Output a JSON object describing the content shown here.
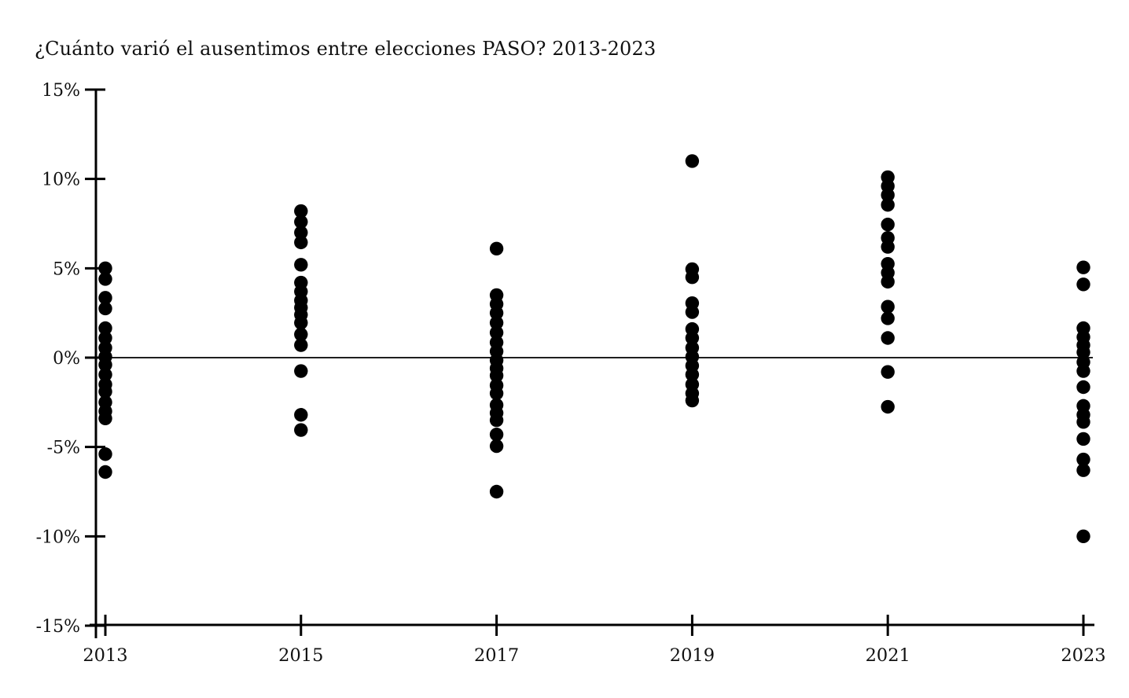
{
  "title": "¿Cuánto varió el ausentimos entre elecciones PASO? 2013-2023",
  "colors": {
    "background": "#ffffff",
    "dot": "#000000",
    "axis": "#000000",
    "zero_line": "#1f1f1f",
    "text": "#111111"
  },
  "chart_data": {
    "type": "scatter",
    "title": "¿Cuánto varió el ausentimos entre elecciones PASO? 2013-2023",
    "xlabel": "",
    "ylabel": "",
    "ylim": [
      -15,
      15
    ],
    "grid": false,
    "zero_line": true,
    "legend": "none",
    "y_ticks": [
      {
        "label": "15%",
        "value": 15
      },
      {
        "label": "10%",
        "value": 10
      },
      {
        "label": "5%",
        "value": 5
      },
      {
        "label": "0%",
        "value": 0
      },
      {
        "label": "-5%",
        "value": -5
      },
      {
        "label": "-10%",
        "value": -10
      },
      {
        "label": "-15%",
        "value": -15
      }
    ],
    "x_categories": [
      "2013",
      "2015",
      "2017",
      "2019",
      "2021",
      "2023"
    ],
    "series": [
      {
        "name": "2013",
        "values": [
          5.0,
          4.4,
          3.35,
          2.75,
          1.65,
          1.1,
          0.55,
          0.05,
          -0.4,
          -0.95,
          -1.5,
          -1.9,
          -2.5,
          -3.0,
          -3.4,
          -5.4,
          -6.4
        ]
      },
      {
        "name": "2015",
        "values": [
          8.2,
          7.6,
          7.0,
          6.45,
          5.2,
          4.2,
          3.7,
          3.2,
          2.8,
          2.4,
          1.95,
          1.3,
          0.7,
          -0.75,
          -3.2,
          -4.05
        ]
      },
      {
        "name": "2017",
        "values": [
          6.1,
          3.5,
          3.0,
          2.5,
          1.95,
          1.4,
          0.85,
          0.35,
          -0.15,
          -0.6,
          -1.0,
          -1.55,
          -2.0,
          -2.65,
          -3.1,
          -3.5,
          -4.3,
          -4.95,
          -7.5
        ]
      },
      {
        "name": "2019",
        "values": [
          11.0,
          4.95,
          4.5,
          3.05,
          2.55,
          1.6,
          1.1,
          0.55,
          0.05,
          -0.45,
          -0.95,
          -1.5,
          -2.0,
          -2.4
        ]
      },
      {
        "name": "2021",
        "values": [
          10.1,
          9.6,
          9.1,
          8.55,
          7.45,
          6.7,
          6.2,
          5.25,
          4.75,
          4.25,
          2.85,
          2.2,
          1.1,
          -0.8,
          -2.75
        ]
      },
      {
        "name": "2023",
        "values": [
          5.05,
          4.1,
          1.65,
          1.15,
          0.7,
          0.3,
          -0.25,
          -0.75,
          -1.65,
          -2.7,
          -3.2,
          -3.6,
          -4.55,
          -5.7,
          -6.3,
          -10.0
        ]
      }
    ]
  }
}
